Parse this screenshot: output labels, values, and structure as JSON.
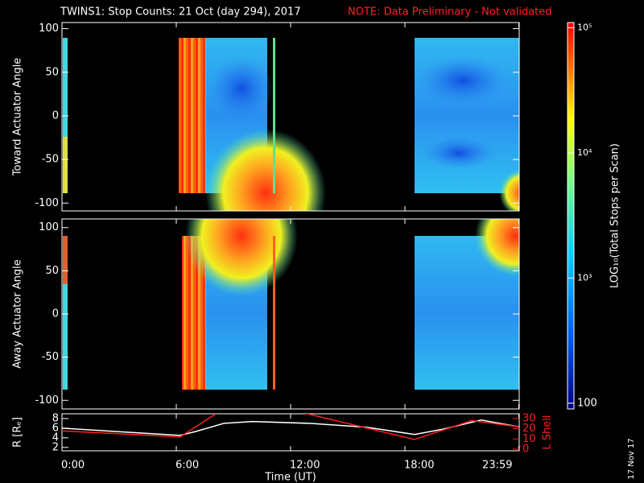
{
  "header": {
    "title": "TWINS1: Stop Counts: 21 Oct (day 294), 2017",
    "note": "NOTE: Data Preliminary - Not validated"
  },
  "chart_data": [
    {
      "type": "heatmap",
      "ylabel": "Toward Actuator Angle",
      "ylim": [
        -109,
        107
      ],
      "yticks": [
        -100,
        -50,
        0,
        50,
        100
      ]
    },
    {
      "type": "heatmap",
      "ylabel": "Away Actuator Angle",
      "ylim": [
        -110,
        110
      ],
      "yticks": [
        -100,
        -50,
        0,
        50,
        100
      ]
    },
    {
      "type": "line",
      "ylabel": "R [Rₑ]",
      "y2label": "L Shell",
      "xlabel": "Time (UT)",
      "xlim": [
        0,
        24
      ],
      "xticks": [
        {
          "value": 0,
          "label": "0:00"
        },
        {
          "value": 6,
          "label": "6:00"
        },
        {
          "value": 12,
          "label": "12:00"
        },
        {
          "value": 18,
          "label": "18:00"
        },
        {
          "value": 23.98,
          "label": "23:59"
        }
      ],
      "ylim": [
        1.3,
        9
      ],
      "yticks": [
        2,
        4,
        6,
        8
      ],
      "y2lim": [
        -1.6,
        34.7
      ],
      "y2ticks": [
        0,
        10,
        20,
        30
      ],
      "series": [
        {
          "color": "#ffffff",
          "x": [
            0,
            6.2,
            7,
            8.5,
            10,
            13,
            16,
            18.5,
            20,
            22,
            23.98
          ],
          "values": [
            6,
            4.5,
            5.3,
            7,
            7.4,
            7,
            6.2,
            4.7,
            5.8,
            7.7,
            6.3
          ]
        },
        {
          "color": "#ff2020",
          "axis": "y2",
          "x": [
            0,
            6.2,
            8.1,
            null,
            12.8,
            18.5,
            21.5,
            23.98
          ],
          "values": [
            18,
            12,
            35,
            null,
            35,
            9.5,
            28,
            22
          ]
        }
      ]
    }
  ],
  "colorbar": {
    "label": "LOG₁₀(Total Stops per Scan)",
    "scale": "log",
    "lim": [
      90,
      110000
    ],
    "ticks": [
      100,
      {
        "value": 1000,
        "label": "10³"
      },
      {
        "value": 10000,
        "label": "10⁴"
      },
      {
        "value": 100000,
        "label": "10⁵"
      }
    ]
  },
  "footer": {
    "date": "17 Nov 17"
  }
}
